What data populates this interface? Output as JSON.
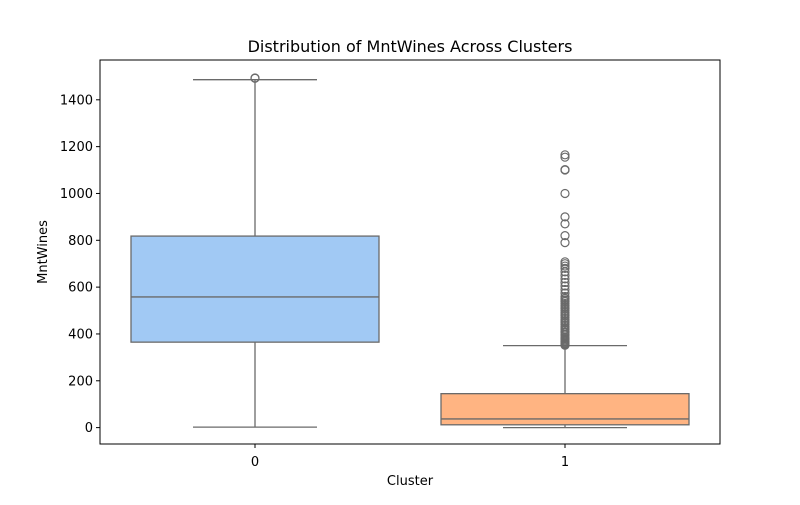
{
  "chart_data": {
    "type": "box",
    "title": "Distribution of MntWines Across Clusters",
    "xlabel": "Cluster",
    "ylabel": "MntWines",
    "categories": [
      "0",
      "1"
    ],
    "ylim": [
      -70,
      1570
    ],
    "yticks": [
      0,
      200,
      400,
      600,
      800,
      1000,
      1200,
      1400
    ],
    "grid": false,
    "legend": "none",
    "colors": {
      "box_fill": [
        "#a1c9f4",
        "#ffb482"
      ],
      "line": "#6a6a6a",
      "frame": "#000000"
    },
    "boxes": [
      {
        "category": "0",
        "whisker_low": 2,
        "q1": 365,
        "median": 558,
        "q3": 818,
        "whisker_high": 1486,
        "outliers": [
          1492,
          1493
        ]
      },
      {
        "category": "1",
        "whisker_low": 0,
        "q1": 12,
        "median": 37,
        "q3": 145,
        "whisker_high": 350,
        "outliers": [
          352,
          356,
          360,
          365,
          370,
          375,
          380,
          385,
          392,
          398,
          405,
          410,
          418,
          425,
          432,
          440,
          448,
          455,
          462,
          470,
          478,
          485,
          492,
          500,
          508,
          515,
          522,
          530,
          538,
          545,
          552,
          560,
          575,
          590,
          605,
          620,
          635,
          650,
          665,
          680,
          690,
          700,
          708,
          790,
          820,
          870,
          900,
          1000,
          1100,
          1102,
          1155,
          1165
        ]
      }
    ]
  }
}
